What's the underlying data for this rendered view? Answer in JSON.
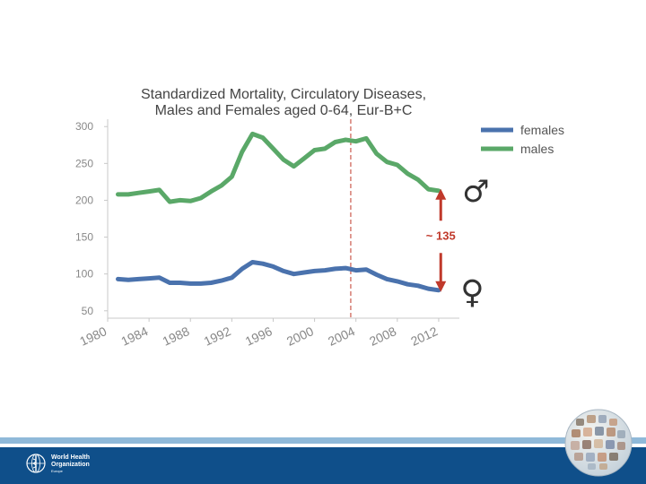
{
  "chart_data": {
    "type": "line",
    "title_line1": "Standardized Mortality, Circulatory Diseases,",
    "title_line2": "Males and Females aged 0-64, Eur-B+C",
    "xlabel": "",
    "ylabel": "",
    "xlim": [
      1980,
      2014
    ],
    "ylim": [
      40,
      310
    ],
    "yticks": [
      50,
      100,
      150,
      200,
      250,
      300
    ],
    "xticks": [
      1980,
      1984,
      1988,
      1992,
      1996,
      2000,
      2004,
      2008,
      2012
    ],
    "ytick_labels": [
      "50",
      "100",
      "150",
      "200",
      "250",
      "300"
    ],
    "xtick_labels": [
      "1980",
      "1984",
      "1988",
      "1992",
      "1996",
      "2000",
      "2004",
      "2008",
      "2012"
    ],
    "x": [
      1981,
      1982,
      1983,
      1984,
      1985,
      1986,
      1987,
      1988,
      1989,
      1990,
      1991,
      1992,
      1993,
      1994,
      1995,
      1996,
      1997,
      1998,
      1999,
      2000,
      2001,
      2002,
      2003,
      2004,
      2005,
      2006,
      2007,
      2008,
      2009,
      2010,
      2011,
      2012
    ],
    "series": [
      {
        "name": "females",
        "color": "#4a72ad",
        "values": [
          93,
          92,
          93,
          94,
          95,
          88,
          88,
          87,
          87,
          88,
          91,
          95,
          107,
          116,
          114,
          110,
          104,
          100,
          102,
          104,
          105,
          107,
          108,
          105,
          106,
          99,
          93,
          90,
          86,
          84,
          80,
          78
        ]
      },
      {
        "name": "males",
        "color": "#5aa868",
        "values": [
          208,
          208,
          210,
          212,
          214,
          198,
          200,
          199,
          203,
          212,
          220,
          232,
          266,
          290,
          285,
          270,
          255,
          246,
          257,
          268,
          270,
          279,
          282,
          280,
          284,
          263,
          252,
          248,
          236,
          228,
          215,
          213
        ]
      }
    ],
    "vline_x": 2003.5,
    "annotation_text": "~ 135",
    "annotation_x": 2012.2,
    "annotation_from": 213,
    "annotation_to": 78,
    "male_symbol": "♂",
    "female_symbol": "♀",
    "legend_position": "top-right"
  },
  "footer": {
    "org_line1": "World Health",
    "org_line2": "Organization",
    "region": "Europe",
    "band_color": "#0f4f8a"
  }
}
